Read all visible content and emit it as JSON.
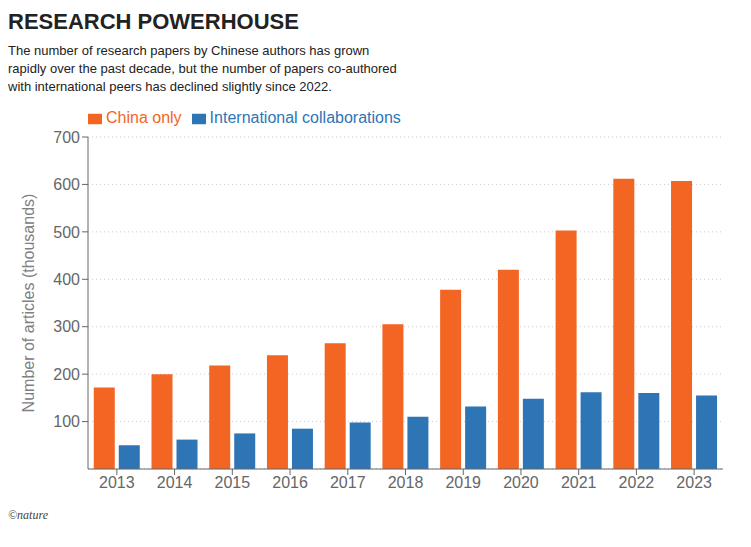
{
  "chart_data": {
    "type": "bar",
    "title": "RESEARCH POWERHOUSE",
    "subtitle": "The number of research papers by Chinese authors has grown\nrapidly over the past decade, but the number of papers co-authored\nwith international peers has declined slightly since 2022.",
    "categories": [
      "2013",
      "2014",
      "2015",
      "2016",
      "2017",
      "2018",
      "2019",
      "2020",
      "2021",
      "2022",
      "2023"
    ],
    "series": [
      {
        "name": "China only",
        "color": "#F26522",
        "values": [
          172,
          200,
          218,
          240,
          265,
          305,
          378,
          420,
          503,
          612,
          607
        ]
      },
      {
        "name": "International collaborations",
        "color": "#2E75B6",
        "values": [
          50,
          62,
          75,
          85,
          98,
          110,
          132,
          148,
          162,
          160,
          155
        ]
      }
    ],
    "ylabel": "Number of articles (thousands)",
    "ylim": [
      0,
      700
    ],
    "yticks": [
      100,
      200,
      300,
      400,
      500,
      600,
      700
    ],
    "grid": true,
    "legend": "upper left",
    "annotations": [
      "©nature"
    ]
  }
}
